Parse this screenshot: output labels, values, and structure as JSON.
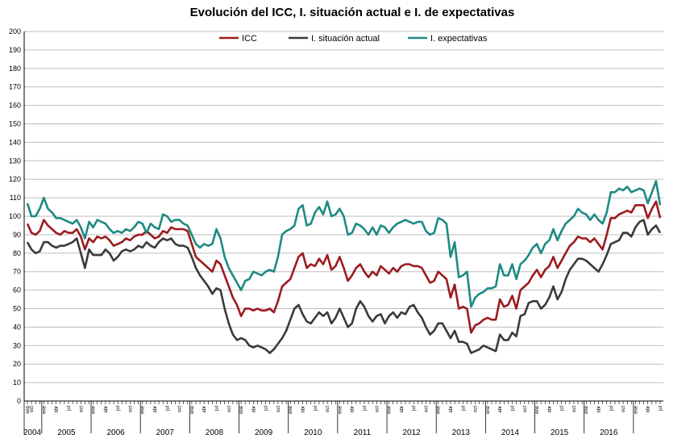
{
  "chart_data": {
    "type": "line",
    "title": "Evolución del ICC, I. situación actual e I. de expectativas",
    "xlabel": "",
    "ylabel": "",
    "ylim": [
      0,
      200
    ],
    "yticks": [
      0,
      10,
      20,
      30,
      40,
      50,
      60,
      70,
      80,
      90,
      100,
      110,
      120,
      130,
      140,
      150,
      160,
      170,
      180,
      190,
      200
    ],
    "grid": true,
    "legend_position": "top-center",
    "years": [
      "2004",
      "2005",
      "2006",
      "2007",
      "2008",
      "2009",
      "2010",
      "2011",
      "2012",
      "2013",
      "2014",
      "2015",
      "2016"
    ],
    "month_labels": [
      "sep",
      "ene",
      "abr",
      "jul",
      "oct"
    ],
    "start": "2004-09",
    "series": [
      {
        "name": "ICC",
        "color": "#9b1b1f",
        "values": [
          96,
          91,
          90,
          92,
          98,
          95,
          93,
          91,
          90,
          92,
          91,
          91,
          93,
          89,
          82,
          88,
          86,
          89,
          88,
          89,
          87,
          84,
          85,
          86,
          88,
          87,
          89,
          90,
          90,
          92,
          90,
          88,
          89,
          92,
          91,
          94,
          93,
          93,
          93,
          92,
          85,
          78,
          76,
          74,
          72,
          70,
          76,
          74,
          68,
          62,
          56,
          52,
          46,
          50,
          50,
          49,
          50,
          49,
          49,
          50,
          48,
          54,
          62,
          64,
          66,
          72,
          78,
          80,
          72,
          74,
          73,
          77,
          74,
          79,
          71,
          73,
          78,
          72,
          65,
          68,
          72,
          74,
          70,
          67,
          70,
          68,
          73,
          71,
          69,
          72,
          70,
          73,
          74,
          74,
          73,
          73,
          72,
          68,
          64,
          65,
          70,
          68,
          66,
          56,
          63,
          50,
          51,
          50,
          37,
          41,
          42,
          44,
          45,
          44,
          44,
          55,
          51,
          52,
          57,
          50,
          60,
          62,
          64,
          68,
          71,
          67,
          71,
          73,
          78,
          72,
          76,
          80,
          84,
          86,
          89,
          88,
          88,
          86,
          88,
          85,
          82,
          90,
          99,
          99,
          101,
          102,
          103,
          102,
          106,
          106,
          106,
          99,
          104,
          108,
          99
        ]
      },
      {
        "name": "I. situación actual",
        "color": "#3a3a3a",
        "values": [
          86,
          82,
          80,
          81,
          86,
          86,
          84,
          83,
          84,
          84,
          85,
          86,
          88,
          80,
          72,
          82,
          79,
          79,
          79,
          82,
          80,
          76,
          78,
          81,
          82,
          81,
          82,
          84,
          83,
          86,
          84,
          83,
          86,
          88,
          87,
          88,
          85,
          84,
          84,
          83,
          78,
          72,
          68,
          65,
          62,
          58,
          61,
          60,
          50,
          42,
          36,
          33,
          34,
          33,
          30,
          29,
          30,
          29,
          28,
          26,
          28,
          31,
          34,
          38,
          44,
          50,
          52,
          47,
          43,
          42,
          45,
          48,
          46,
          48,
          42,
          45,
          50,
          45,
          40,
          42,
          50,
          54,
          51,
          46,
          43,
          46,
          47,
          42,
          46,
          48,
          45,
          48,
          47,
          51,
          52,
          48,
          45,
          40,
          36,
          38,
          42,
          42,
          38,
          34,
          38,
          32,
          32,
          31,
          26,
          27,
          28,
          30,
          29,
          28,
          27,
          36,
          33,
          33,
          37,
          35,
          46,
          47,
          53,
          54,
          54,
          50,
          52,
          56,
          62,
          55,
          59,
          66,
          71,
          74,
          77,
          77,
          76,
          74,
          72,
          70,
          74,
          79,
          85,
          86,
          87,
          91,
          91,
          89,
          94,
          97,
          98,
          90,
          93,
          95,
          91
        ]
      },
      {
        "name": "I. expectativas",
        "color": "#1d8a82",
        "values": [
          107,
          100,
          100,
          104,
          110,
          104,
          102,
          99,
          99,
          98,
          97,
          96,
          98,
          94,
          88,
          97,
          94,
          98,
          97,
          96,
          93,
          91,
          92,
          91,
          93,
          92,
          94,
          97,
          96,
          91,
          96,
          94,
          93,
          101,
          100,
          97,
          98,
          98,
          96,
          95,
          90,
          85,
          83,
          85,
          84,
          85,
          93,
          88,
          78,
          72,
          68,
          64,
          60,
          65,
          66,
          70,
          69,
          68,
          70,
          71,
          70,
          78,
          90,
          92,
          93,
          95,
          104,
          106,
          95,
          96,
          102,
          105,
          101,
          108,
          100,
          101,
          104,
          100,
          90,
          91,
          96,
          95,
          93,
          90,
          94,
          90,
          95,
          94,
          91,
          94,
          96,
          97,
          98,
          97,
          96,
          97,
          97,
          92,
          90,
          91,
          99,
          98,
          96,
          78,
          86,
          67,
          68,
          70,
          51,
          56,
          58,
          59,
          61,
          61,
          62,
          74,
          68,
          68,
          74,
          66,
          74,
          76,
          79,
          83,
          85,
          80,
          85,
          87,
          93,
          87,
          92,
          96,
          98,
          100,
          104,
          102,
          101,
          98,
          101,
          98,
          96,
          102,
          113,
          113,
          115,
          114,
          116,
          113,
          114,
          115,
          114,
          107,
          113,
          119,
          106
        ]
      }
    ]
  }
}
